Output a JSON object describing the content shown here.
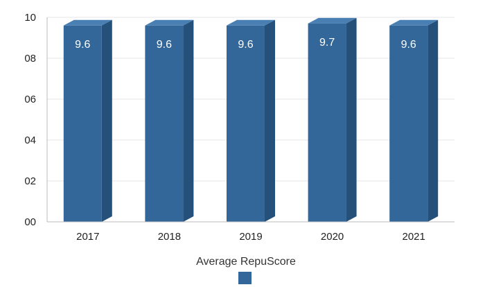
{
  "chart_data": {
    "type": "bar",
    "categories": [
      "2017",
      "2018",
      "2019",
      "2020",
      "2021"
    ],
    "series": [
      {
        "name": "Average RepuScore",
        "values": [
          9.6,
          9.6,
          9.6,
          9.7,
          9.6
        ]
      }
    ],
    "data_labels": [
      "9.6",
      "9.6",
      "9.6",
      "9.7",
      "9.6"
    ],
    "yticks": [
      0,
      2,
      4,
      6,
      8,
      10
    ],
    "ytick_labels": [
      "00",
      "02",
      "04",
      "06",
      "08",
      "10"
    ],
    "ylim": [
      0,
      10
    ],
    "grid": true,
    "legend_position": "bottom",
    "colors": {
      "bar_front": "#336699",
      "bar_side": "#24507a",
      "bar_top": "#4a7fb3",
      "grid": "#e6e6e6",
      "axis": "#bbbbbb"
    }
  }
}
